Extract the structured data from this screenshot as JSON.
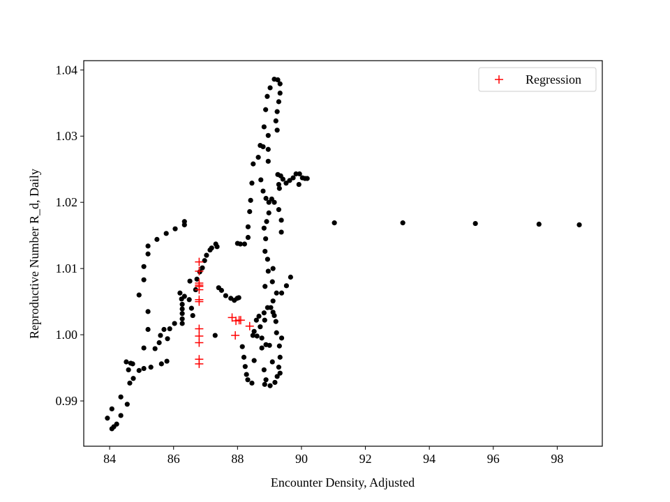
{
  "chart_data": {
    "type": "scatter",
    "xlabel": "Encounter Density, Adjusted",
    "ylabel": "Reproductive Number R_d, Daily",
    "xlim": [
      83.19,
      99.41
    ],
    "ylim": [
      0.98316,
      1.0414
    ],
    "xticks": [
      84,
      86,
      88,
      90,
      92,
      94,
      96,
      98
    ],
    "yticks": [
      0.99,
      {
        "value": 1,
        "label": "1.00"
      },
      1.01,
      1.02,
      1.03,
      1.04
    ],
    "legend": "upper right",
    "series": [
      {
        "color": "#000000",
        "marker": "dot",
        "x": [
          83.93,
          84.07,
          84.07,
          84.13,
          84.22,
          84.35,
          84.35,
          84.55,
          84.52,
          84.59,
          84.66,
          84.63,
          84.74,
          84.72,
          84.92,
          85.07,
          85.07,
          85.29,
          85.42,
          85.62,
          85.79,
          85.55,
          85.59,
          85.7,
          85.81,
          85.88,
          86.03,
          86.27,
          86.27,
          86.27,
          86.27,
          86.27,
          86.25,
          86.2,
          86.34,
          86.49,
          86.56,
          86.6,
          86.51,
          86.69,
          86.73,
          86.82,
          86.9,
          86.97,
          87.03,
          87.14,
          87.19,
          87.32,
          87.36,
          84.92,
          85.07,
          85.07,
          85.2,
          85.2,
          85.2,
          85.48,
          85.77,
          86.05,
          86.34,
          86.34,
          85.2,
          87.3,
          87.41,
          87.5,
          87.63,
          87.79,
          87.9,
          87.99,
          88.04,
          88.0,
          88.09,
          88.22,
          88.33,
          88.33,
          88.38,
          88.41,
          88.45,
          88.49,
          88.65,
          88.71,
          88.8,
          88.83,
          88.88,
          88.93,
          89.02,
          89.15,
          89.26,
          89.33,
          89.33,
          89.29,
          89.24,
          89.2,
          89.24,
          88.96,
          88.96,
          88.96,
          88.73,
          88.8,
          88.89,
          88.98,
          89.07,
          89.15,
          89.29,
          89.37,
          89.37,
          88.98,
          88.91,
          88.83,
          88.88,
          88.86,
          88.94,
          88.96,
          88.86,
          89.11,
          89.09,
          89.11,
          89.22,
          89.53,
          89.66,
          89.38,
          89.26,
          89.35,
          89.42,
          89.52,
          89.63,
          89.74,
          89.83,
          89.94,
          90.03,
          90.11,
          90.18,
          89.92,
          89.29,
          89.31,
          91.03,
          93.17,
          95.44,
          97.43,
          98.69,
          88.15,
          88.2,
          88.24,
          88.28,
          88.32,
          88.45,
          88.52,
          88.48,
          88.52,
          88.59,
          88.67,
          88.71,
          88.76,
          88.76,
          88.61,
          88.83,
          88.94,
          88.85,
          88.83,
          88.89,
          88.85,
          89.02,
          89.17,
          89.24,
          89.29,
          89.33,
          89.31,
          89.22,
          89.2,
          89.15,
          89.11,
          89.04,
          89.33,
          89.09,
          89.0,
          88.89,
          89.38
        ],
        "values": [
          0.9874,
          0.9888,
          0.9858,
          0.9861,
          0.9865,
          0.9878,
          0.9906,
          0.9895,
          0.9959,
          0.9947,
          0.9957,
          0.9927,
          0.9934,
          0.9956,
          0.9946,
          0.9949,
          0.998,
          0.9951,
          0.9979,
          0.9956,
          0.996,
          0.9988,
          0.9999,
          1.0008,
          0.9994,
          1.0009,
          1.0017,
          1.0017,
          1.0024,
          1.0032,
          1.0039,
          1.0046,
          1.0054,
          1.0063,
          1.0058,
          1.0053,
          1.004,
          1.0029,
          1.0081,
          1.0068,
          1.0084,
          1.0095,
          1.0101,
          1.0112,
          1.012,
          1.0128,
          1.0131,
          1.0137,
          1.0133,
          1.006,
          1.0083,
          1.0103,
          1.0134,
          1.0122,
          1.0035,
          1.0144,
          1.0153,
          1.016,
          1.0166,
          1.0171,
          1.0008,
          0.9999,
          1.0071,
          1.0067,
          1.0059,
          1.0055,
          1.0052,
          1.0055,
          1.0056,
          1.0138,
          1.0137,
          1.0137,
          1.0147,
          1.0163,
          1.0186,
          1.0203,
          1.0229,
          1.0258,
          1.0268,
          1.0286,
          1.0284,
          1.0314,
          1.034,
          1.036,
          1.0373,
          1.0386,
          1.0385,
          1.0379,
          1.0365,
          1.0352,
          1.0337,
          1.0323,
          1.0309,
          1.0301,
          1.028,
          1.0262,
          1.0234,
          1.0217,
          1.0206,
          1.02,
          1.0205,
          1.02,
          1.0189,
          1.0173,
          1.0155,
          1.0184,
          1.0171,
          1.0161,
          1.0145,
          1.0126,
          1.0114,
          1.0096,
          1.0073,
          1.01,
          1.008,
          1.0051,
          1.0063,
          1.0074,
          1.0087,
          1.0063,
          1.0242,
          1.024,
          1.0235,
          1.0229,
          1.0233,
          1.0237,
          1.0243,
          1.0243,
          1.0237,
          1.0236,
          1.0236,
          1.0227,
          1.0227,
          1.0221,
          1.0169,
          1.0169,
          1.0168,
          1.0167,
          1.0166,
          0.9982,
          0.9966,
          0.9952,
          0.994,
          0.9932,
          0.9927,
          0.9961,
          0.9999,
          1.0005,
          1.0022,
          1.0028,
          1.0012,
          0.9995,
          0.998,
          0.9998,
          1.0033,
          1.0041,
          1.0022,
          0.9947,
          0.9932,
          0.9925,
          0.9923,
          0.9928,
          0.9937,
          0.9951,
          0.9966,
          0.9983,
          1.0003,
          1.002,
          1.0029,
          1.0034,
          1.0041,
          0.9942,
          0.9959,
          0.9984,
          0.9985,
          0.9995
        ]
      },
      {
        "name": "Regression",
        "color": "#ff0000",
        "marker": "plus",
        "x": [
          86.8,
          86.8,
          86.8,
          86.8,
          86.8,
          86.8,
          86.8,
          86.8,
          86.8,
          86.8,
          86.8,
          86.8,
          86.8,
          87.83,
          87.95,
          88.05,
          88.1,
          87.93,
          88.38
        ],
        "values": [
          1.011,
          1.0096,
          1.0078,
          1.0075,
          1.0073,
          1.0068,
          1.0053,
          1.005,
          1.0009,
          0.9998,
          0.9988,
          0.9963,
          0.9956,
          1.0026,
          1.0021,
          1.0022,
          1.0022,
          0.9999,
          1.0013
        ]
      }
    ]
  }
}
